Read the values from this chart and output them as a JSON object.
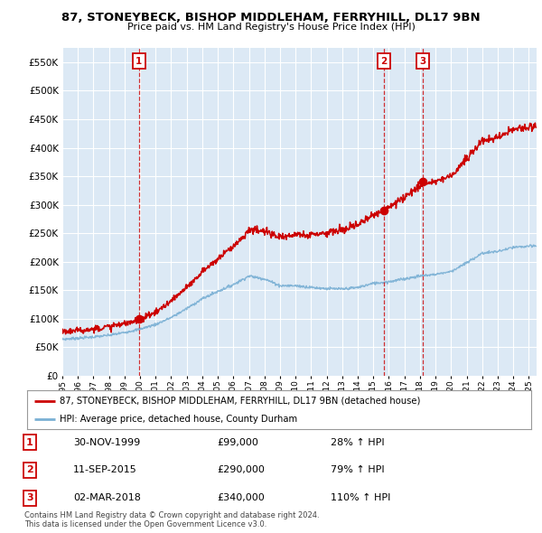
{
  "title": "87, STONEYBECK, BISHOP MIDDLEHAM, FERRYHILL, DL17 9BN",
  "subtitle": "Price paid vs. HM Land Registry's House Price Index (HPI)",
  "legend_line1": "87, STONEYBECK, BISHOP MIDDLEHAM, FERRYHILL, DL17 9BN (detached house)",
  "legend_line2": "HPI: Average price, detached house, County Durham",
  "transactions": [
    {
      "num": 1,
      "date": "30-NOV-1999",
      "price": "£99,000",
      "change": "28% ↑ HPI"
    },
    {
      "num": 2,
      "date": "11-SEP-2015",
      "price": "£290,000",
      "change": "79% ↑ HPI"
    },
    {
      "num": 3,
      "date": "02-MAR-2018",
      "price": "£340,000",
      "change": "110% ↑ HPI"
    }
  ],
  "footer1": "Contains HM Land Registry data © Crown copyright and database right 2024.",
  "footer2": "This data is licensed under the Open Government Licence v3.0.",
  "ylim": [
    0,
    575000
  ],
  "yticks": [
    0,
    50000,
    100000,
    150000,
    200000,
    250000,
    300000,
    350000,
    400000,
    450000,
    500000,
    550000
  ],
  "xlim_start": 1995.0,
  "xlim_end": 2025.5,
  "red_color": "#cc0000",
  "blue_color": "#7ab0d4",
  "plot_bg": "#dce9f5",
  "background": "#ffffff",
  "grid_color": "#ffffff",
  "transaction_marker_dates": [
    1999.917,
    2015.69,
    2018.17
  ],
  "transaction_marker_values": [
    99000,
    290000,
    340000
  ]
}
